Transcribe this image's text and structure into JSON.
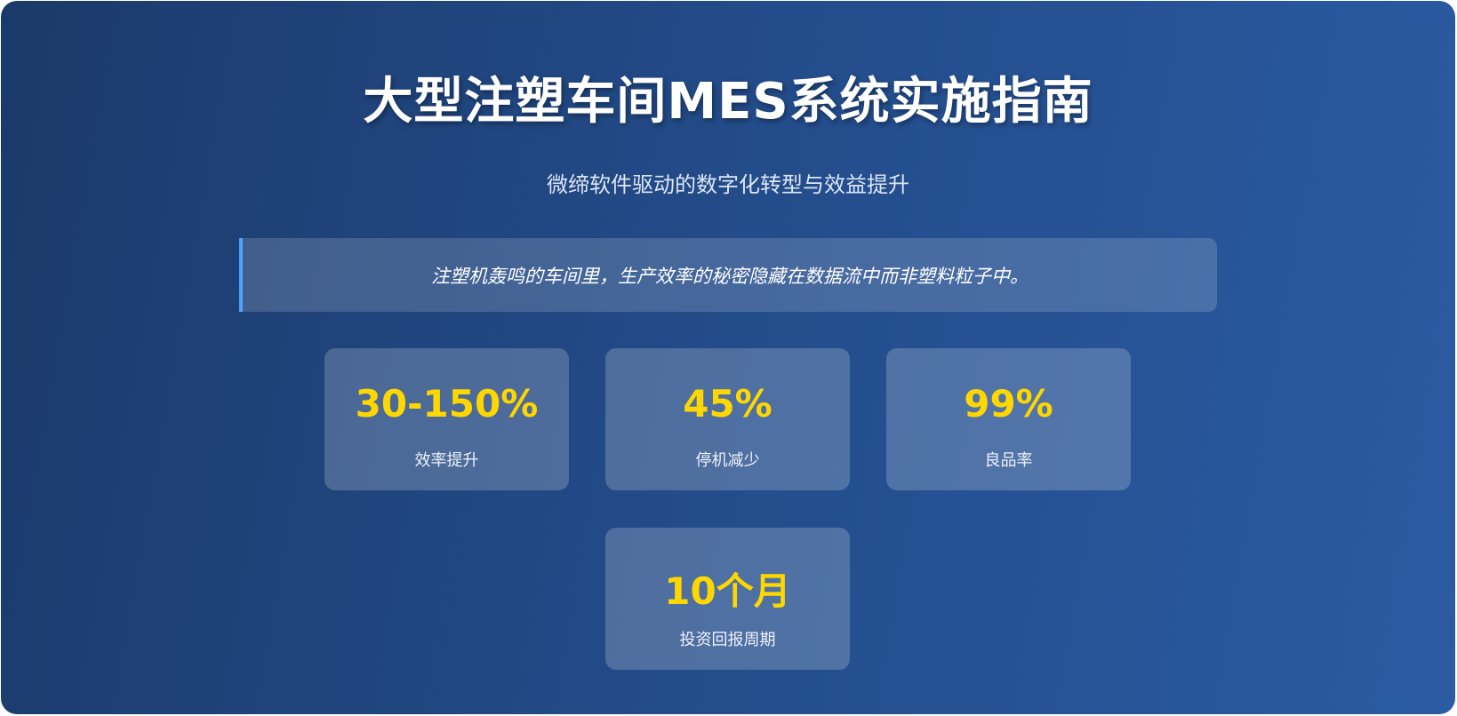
{
  "header": {
    "title": "大型注塑车间MES系统实施指南",
    "subtitle": "微缔软件驱动的数字化转型与效益提升"
  },
  "quote": "注塑机轰鸣的车间里，生产效率的秘密隐藏在数据流中而非塑料粒子中。",
  "stats": [
    {
      "value": "30-150%",
      "label": "效率提升"
    },
    {
      "value": "45%",
      "label": "停机减少"
    },
    {
      "value": "99%",
      "label": "良品率"
    },
    {
      "value": "10个月",
      "label": "投资回报周期"
    }
  ],
  "colors": {
    "accent": "#ffd700",
    "quote_border": "#4da3ff",
    "background_start": "#1b3a6b",
    "background_end": "#2b5ba3"
  }
}
